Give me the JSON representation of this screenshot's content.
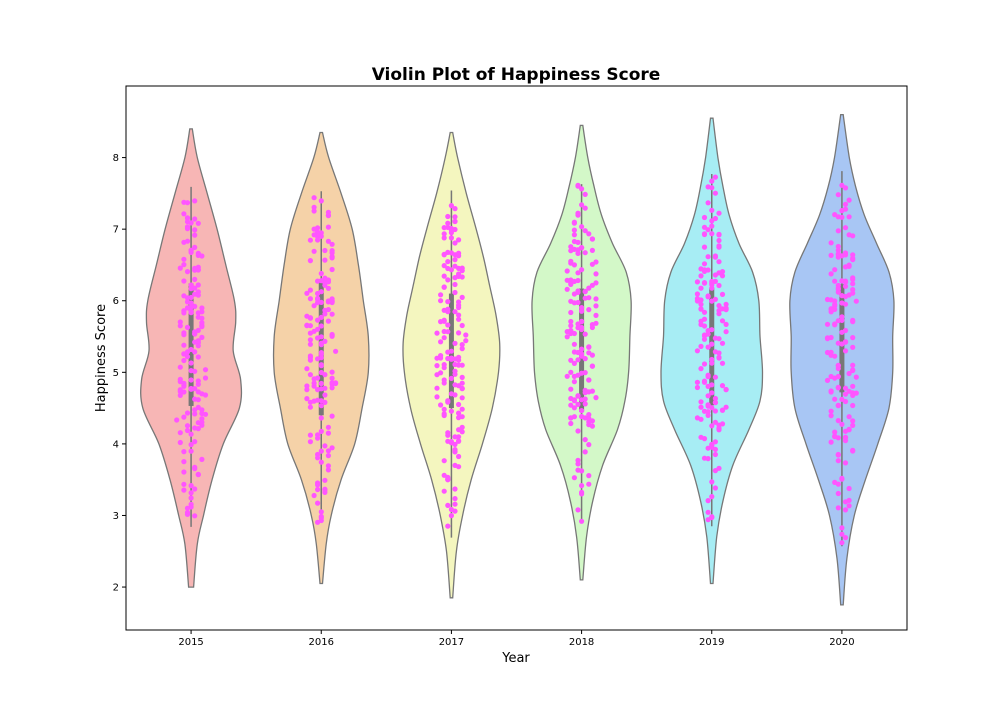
{
  "chart_data": {
    "type": "violin",
    "title": "Violin Plot of Happiness Score",
    "xlabel": "Year",
    "ylabel": "Happiness Score",
    "categories": [
      "2015",
      "2016",
      "2017",
      "2018",
      "2019",
      "2020"
    ],
    "ylim": [
      1.4,
      9.0
    ],
    "yticks": [
      2,
      3,
      4,
      5,
      6,
      7,
      8
    ],
    "point_color": "#ff55ff",
    "edge_color": "#777777",
    "colors": [
      "#f7b6b5",
      "#f5d2a8",
      "#f4f6bf",
      "#d3f8c8",
      "#a7edf4",
      "#a8c6f4"
    ],
    "series": [
      {
        "name": "2015",
        "min": 2.84,
        "max": 7.59,
        "q1": 4.53,
        "median": 5.23,
        "q3": 6.24,
        "kde_min": 2.0,
        "kde_max": 8.4,
        "density": [
          [
            2.0,
            0.02
          ],
          [
            2.6,
            0.05
          ],
          [
            3.0,
            0.1
          ],
          [
            3.5,
            0.17
          ],
          [
            4.0,
            0.26
          ],
          [
            4.5,
            0.39
          ],
          [
            4.9,
            0.4
          ],
          [
            5.3,
            0.34
          ],
          [
            5.7,
            0.36
          ],
          [
            6.0,
            0.35
          ],
          [
            6.5,
            0.28
          ],
          [
            7.0,
            0.21
          ],
          [
            7.5,
            0.13
          ],
          [
            8.0,
            0.05
          ],
          [
            8.4,
            0.01
          ]
        ]
      },
      {
        "name": "2016",
        "min": 2.9,
        "max": 7.53,
        "q1": 4.4,
        "median": 5.31,
        "q3": 6.27,
        "kde_min": 2.05,
        "kde_max": 8.35,
        "density": [
          [
            2.05,
            0.01
          ],
          [
            2.6,
            0.04
          ],
          [
            3.0,
            0.08
          ],
          [
            3.5,
            0.16
          ],
          [
            4.0,
            0.27
          ],
          [
            4.5,
            0.33
          ],
          [
            5.0,
            0.38
          ],
          [
            5.5,
            0.38
          ],
          [
            6.0,
            0.34
          ],
          [
            6.5,
            0.3
          ],
          [
            7.0,
            0.25
          ],
          [
            7.5,
            0.16
          ],
          [
            8.0,
            0.06
          ],
          [
            8.35,
            0.01
          ]
        ]
      },
      {
        "name": "2017",
        "min": 2.69,
        "max": 7.54,
        "q1": 4.5,
        "median": 5.28,
        "q3": 6.1,
        "kde_min": 1.85,
        "kde_max": 8.35,
        "density": [
          [
            1.85,
            0.01
          ],
          [
            2.5,
            0.04
          ],
          [
            3.0,
            0.09
          ],
          [
            3.5,
            0.16
          ],
          [
            4.0,
            0.25
          ],
          [
            4.5,
            0.33
          ],
          [
            5.0,
            0.38
          ],
          [
            5.4,
            0.39
          ],
          [
            5.8,
            0.36
          ],
          [
            6.2,
            0.31
          ],
          [
            6.6,
            0.26
          ],
          [
            7.0,
            0.2
          ],
          [
            7.5,
            0.12
          ],
          [
            8.0,
            0.05
          ],
          [
            8.35,
            0.01
          ]
        ]
      },
      {
        "name": "2018",
        "min": 2.9,
        "max": 7.63,
        "q1": 4.45,
        "median": 5.38,
        "q3": 6.17,
        "kde_min": 2.1,
        "kde_max": 8.45,
        "density": [
          [
            2.1,
            0.01
          ],
          [
            2.7,
            0.04
          ],
          [
            3.2,
            0.09
          ],
          [
            3.7,
            0.17
          ],
          [
            4.2,
            0.29
          ],
          [
            4.6,
            0.35
          ],
          [
            5.0,
            0.38
          ],
          [
            5.5,
            0.39
          ],
          [
            6.0,
            0.4
          ],
          [
            6.4,
            0.36
          ],
          [
            6.8,
            0.25
          ],
          [
            7.2,
            0.16
          ],
          [
            7.6,
            0.1
          ],
          [
            8.0,
            0.05
          ],
          [
            8.45,
            0.01
          ]
        ]
      },
      {
        "name": "2019",
        "min": 2.85,
        "max": 7.77,
        "q1": 4.54,
        "median": 5.38,
        "q3": 6.18,
        "kde_min": 2.05,
        "kde_max": 8.55,
        "density": [
          [
            2.05,
            0.01
          ],
          [
            2.7,
            0.04
          ],
          [
            3.2,
            0.09
          ],
          [
            3.7,
            0.17
          ],
          [
            4.2,
            0.3
          ],
          [
            4.6,
            0.39
          ],
          [
            5.0,
            0.41
          ],
          [
            5.5,
            0.39
          ],
          [
            6.0,
            0.38
          ],
          [
            6.4,
            0.33
          ],
          [
            6.8,
            0.22
          ],
          [
            7.2,
            0.14
          ],
          [
            7.6,
            0.09
          ],
          [
            8.0,
            0.05
          ],
          [
            8.55,
            0.01
          ]
        ]
      },
      {
        "name": "2020",
        "min": 2.57,
        "max": 7.81,
        "q1": 4.72,
        "median": 5.51,
        "q3": 6.23,
        "kde_min": 1.75,
        "kde_max": 8.6,
        "density": [
          [
            1.75,
            0.01
          ],
          [
            2.4,
            0.04
          ],
          [
            3.0,
            0.1
          ],
          [
            3.5,
            0.19
          ],
          [
            4.0,
            0.29
          ],
          [
            4.5,
            0.38
          ],
          [
            5.0,
            0.41
          ],
          [
            5.5,
            0.41
          ],
          [
            6.0,
            0.42
          ],
          [
            6.4,
            0.38
          ],
          [
            6.8,
            0.28
          ],
          [
            7.2,
            0.18
          ],
          [
            7.6,
            0.11
          ],
          [
            8.0,
            0.06
          ],
          [
            8.6,
            0.01
          ]
        ]
      }
    ]
  }
}
